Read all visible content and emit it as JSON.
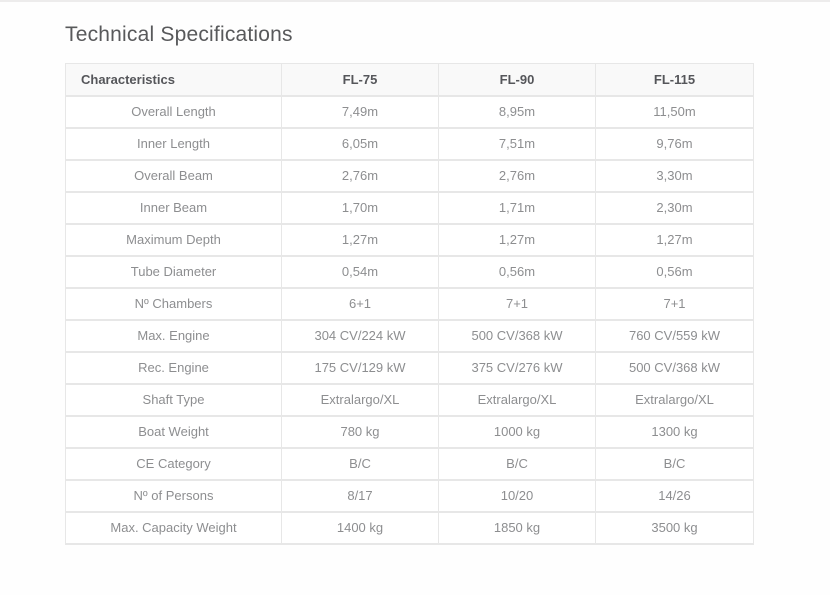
{
  "page": {
    "title": "Technical Specifications"
  },
  "table": {
    "columns": [
      "Characteristics",
      "FL-75",
      "FL-90",
      "FL-115"
    ],
    "rows": [
      {
        "label": "Overall Length",
        "values": [
          "7,49m",
          "8,95m",
          "11,50m"
        ]
      },
      {
        "label": "Inner Length",
        "values": [
          "6,05m",
          "7,51m",
          "9,76m"
        ]
      },
      {
        "label": "Overall Beam",
        "values": [
          "2,76m",
          "2,76m",
          "3,30m"
        ]
      },
      {
        "label": "Inner Beam",
        "values": [
          "1,70m",
          "1,71m",
          "2,30m"
        ]
      },
      {
        "label": "Maximum Depth",
        "values": [
          "1,27m",
          "1,27m",
          "1,27m"
        ]
      },
      {
        "label": "Tube Diameter",
        "values": [
          "0,54m",
          "0,56m",
          "0,56m"
        ]
      },
      {
        "label": "Nº Chambers",
        "values": [
          "6+1",
          "7+1",
          "7+1"
        ]
      },
      {
        "label": "Max. Engine",
        "values": [
          "304 CV/224 kW",
          "500 CV/368 kW",
          "760 CV/559 kW"
        ]
      },
      {
        "label": "Rec. Engine",
        "values": [
          "175 CV/129 kW",
          "375 CV/276 kW",
          "500 CV/368 kW"
        ]
      },
      {
        "label": "Shaft Type",
        "values": [
          "Extralargo/XL",
          "Extralargo/XL",
          "Extralargo/XL"
        ]
      },
      {
        "label": "Boat Weight",
        "values": [
          "780 kg",
          "1000 kg",
          "1300 kg"
        ]
      },
      {
        "label": "CE Category",
        "values": [
          "B/C",
          "B/C",
          "B/C"
        ]
      },
      {
        "label": "Nº of Persons",
        "values": [
          "8/17",
          "10/20",
          "14/26"
        ]
      },
      {
        "label": "Max. Capacity Weight",
        "values": [
          "1400 kg",
          "1850 kg",
          "3500 kg"
        ]
      }
    ]
  },
  "colors": {
    "header_bg": "#f9f9f9",
    "border": "#e7e7e7",
    "title_text": "#58595b",
    "header_text": "#55565a",
    "cell_text": "#8d8e90"
  }
}
